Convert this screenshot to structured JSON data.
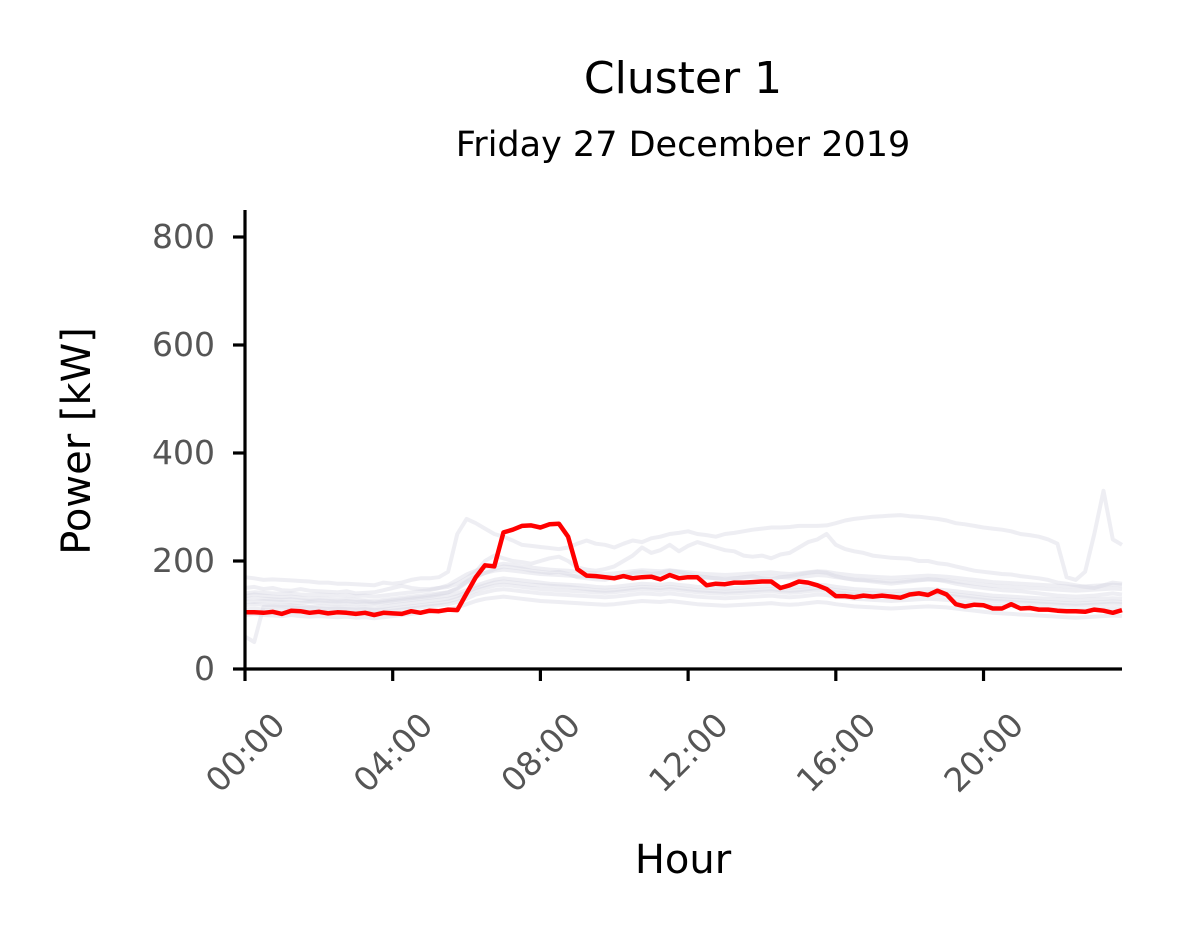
{
  "chart_data": {
    "type": "line",
    "title": "Cluster 1",
    "subtitle": "Friday 27 December 2019",
    "xlabel": "Hour",
    "ylabel": "Power [kW]",
    "ylim": [
      0,
      850
    ],
    "xlim": [
      "00:00",
      "23:45"
    ],
    "x_ticks": [
      "00:00",
      "04:00",
      "08:00",
      "12:00",
      "16:00",
      "20:00"
    ],
    "y_ticks": [
      0,
      200,
      400,
      600,
      800
    ],
    "grid": false,
    "legend": "none",
    "colors": {
      "highlight": "#ff0000",
      "background_days": "#d4d4e2",
      "axis": "#000000",
      "tick_label": "#555555"
    },
    "highlight_series": {
      "x": [
        "00:00",
        "00:15",
        "00:30",
        "00:45",
        "01:00",
        "01:15",
        "01:30",
        "01:45",
        "02:00",
        "02:15",
        "02:30",
        "02:45",
        "03:00",
        "03:15",
        "03:30",
        "03:45",
        "04:00",
        "04:15",
        "04:30",
        "04:45",
        "05:00",
        "05:15",
        "05:30",
        "05:45",
        "06:00",
        "06:15",
        "06:30",
        "06:45",
        "07:00",
        "07:15",
        "07:30",
        "07:45",
        "08:00",
        "08:15",
        "08:30",
        "08:45",
        "09:00",
        "09:15",
        "09:30",
        "09:45",
        "10:00",
        "10:15",
        "10:30",
        "10:45",
        "11:00",
        "11:15",
        "11:30",
        "11:45",
        "12:00",
        "12:15",
        "12:30",
        "12:45",
        "13:00",
        "13:15",
        "13:30",
        "13:45",
        "14:00",
        "14:15",
        "14:30",
        "14:45",
        "15:00",
        "15:15",
        "15:30",
        "15:45",
        "16:00",
        "16:15",
        "16:30",
        "16:45",
        "17:00",
        "17:15",
        "17:30",
        "17:45",
        "18:00",
        "18:15",
        "18:30",
        "18:45",
        "19:00",
        "19:15",
        "19:30",
        "19:45",
        "20:00",
        "20:15",
        "20:30",
        "20:45",
        "21:00",
        "21:15",
        "21:30",
        "21:45",
        "22:00",
        "22:15",
        "22:30",
        "22:45",
        "23:00",
        "23:15",
        "23:30",
        "23:45"
      ],
      "values": [
        105,
        105,
        104,
        106,
        102,
        108,
        107,
        104,
        106,
        103,
        105,
        104,
        102,
        104,
        100,
        104,
        103,
        102,
        107,
        104,
        108,
        107,
        110,
        109,
        140,
        170,
        192,
        190,
        253,
        258,
        265,
        266,
        262,
        268,
        269,
        245,
        185,
        173,
        172,
        170,
        168,
        172,
        168,
        170,
        171,
        166,
        174,
        168,
        170,
        170,
        155,
        158,
        157,
        160,
        160,
        161,
        162,
        162,
        150,
        155,
        162,
        160,
        155,
        148,
        135,
        135,
        133,
        136,
        134,
        136,
        134,
        132,
        138,
        140,
        137,
        145,
        138,
        120,
        116,
        119,
        118,
        112,
        112,
        120,
        112,
        113,
        110,
        110,
        108,
        107,
        107,
        106,
        110,
        108,
        104,
        109
      ]
    },
    "background_series": [
      {
        "values": [
          170,
          168,
          165,
          166,
          165,
          164,
          163,
          162,
          160,
          160,
          158,
          158,
          157,
          156,
          155,
          160,
          158,
          160,
          165,
          168,
          168,
          170,
          180,
          250,
          278,
          270,
          260,
          250,
          245,
          238,
          230,
          228,
          226,
          224,
          222,
          225,
          232,
          238,
          232,
          230,
          225,
          232,
          238,
          235,
          242,
          245,
          250,
          252,
          255,
          250,
          248,
          245,
          250,
          252,
          255,
          258,
          260,
          262,
          262,
          263,
          265,
          265,
          265,
          266,
          270,
          275,
          278,
          280,
          282,
          283,
          284,
          285,
          283,
          282,
          280,
          278,
          275,
          270,
          268,
          265,
          262,
          260,
          258,
          255,
          250,
          248,
          245,
          240,
          232,
          170,
          165,
          180,
          250,
          330,
          240,
          230
        ]
      },
      {
        "values": [
          150,
          152,
          148,
          150,
          146,
          145,
          148,
          145,
          144,
          143,
          142,
          144,
          140,
          141,
          142,
          146,
          150,
          154,
          150,
          148,
          148,
          150,
          152,
          158,
          168,
          180,
          200,
          210,
          205,
          200,
          198,
          195,
          200,
          205,
          208,
          200,
          188,
          184,
          182,
          185,
          190,
          200,
          210,
          225,
          215,
          220,
          230,
          218,
          228,
          235,
          230,
          225,
          220,
          218,
          210,
          208,
          210,
          205,
          212,
          215,
          225,
          235,
          240,
          250,
          230,
          222,
          218,
          215,
          210,
          208,
          206,
          205,
          204,
          200,
          200,
          196,
          194,
          190,
          186,
          182,
          180,
          178,
          176,
          175,
          172,
          170,
          168,
          165,
          160,
          158,
          155,
          152,
          150,
          155,
          160,
          158
        ]
      },
      {
        "values": [
          135,
          138,
          136,
          134,
          133,
          134,
          132,
          130,
          131,
          130,
          128,
          130,
          128,
          127,
          126,
          128,
          130,
          132,
          134,
          136,
          138,
          140,
          142,
          148,
          160,
          170,
          178,
          185,
          190,
          188,
          186,
          182,
          180,
          178,
          180,
          176,
          170,
          168,
          166,
          165,
          170,
          172,
          178,
          180,
          176,
          178,
          182,
          180,
          176,
          172,
          170,
          168,
          166,
          168,
          170,
          172,
          168,
          166,
          170,
          172,
          175,
          178,
          180,
          178,
          172,
          168,
          165,
          164,
          162,
          160,
          158,
          160,
          162,
          164,
          166,
          165,
          162,
          158,
          155,
          152,
          150,
          148,
          146,
          145,
          144,
          142,
          140,
          138,
          136,
          135,
          134,
          135,
          136,
          138,
          140,
          138
        ]
      },
      {
        "values": [
          118,
          120,
          119,
          118,
          117,
          118,
          116,
          115,
          116,
          115,
          114,
          115,
          113,
          114,
          112,
          115,
          118,
          120,
          122,
          124,
          126,
          128,
          130,
          135,
          142,
          150,
          155,
          160,
          162,
          160,
          158,
          156,
          155,
          154,
          153,
          152,
          150,
          148,
          146,
          145,
          146,
          148,
          150,
          152,
          151,
          150,
          152,
          150,
          148,
          146,
          145,
          144,
          143,
          144,
          145,
          146,
          147,
          148,
          146,
          145,
          146,
          148,
          150,
          149,
          146,
          144,
          142,
          141,
          140,
          139,
          138,
          139,
          140,
          141,
          142,
          141,
          140,
          138,
          136,
          134,
          132,
          130,
          129,
          128,
          127,
          126,
          125,
          124,
          123,
          122,
          121,
          122,
          123,
          124,
          125,
          124
        ]
      },
      {
        "values": [
          125,
          124,
          126,
          125,
          124,
          123,
          122,
          124,
          123,
          122,
          121,
          122,
          120,
          121,
          120,
          122,
          124,
          126,
          128,
          130,
          132,
          134,
          136,
          140,
          146,
          154,
          160,
          165,
          168,
          166,
          164,
          162,
          160,
          158,
          157,
          156,
          155,
          154,
          152,
          151,
          152,
          154,
          156,
          158,
          157,
          156,
          158,
          156,
          154,
          152,
          151,
          150,
          149,
          150,
          151,
          152,
          153,
          154,
          152,
          151,
          152,
          154,
          156,
          155,
          152,
          150,
          148,
          147,
          146,
          145,
          144,
          145,
          146,
          147,
          148,
          147,
          146,
          144,
          142,
          140,
          138,
          136,
          135,
          134,
          133,
          132,
          131,
          130,
          129,
          128,
          127,
          128,
          129,
          130,
          131,
          130
        ]
      },
      {
        "values": [
          110,
          112,
          110,
          109,
          108,
          110,
          108,
          107,
          108,
          107,
          106,
          107,
          105,
          106,
          104,
          106,
          108,
          110,
          112,
          114,
          116,
          118,
          120,
          124,
          130,
          138,
          142,
          146,
          148,
          146,
          144,
          142,
          140,
          139,
          138,
          137,
          136,
          135,
          134,
          133,
          134,
          136,
          138,
          140,
          139,
          138,
          140,
          138,
          136,
          134,
          133,
          132,
          131,
          132,
          133,
          134,
          135,
          136,
          134,
          133,
          134,
          136,
          138,
          137,
          134,
          132,
          130,
          129,
          128,
          127,
          126,
          127,
          128,
          129,
          130,
          129,
          128,
          126,
          124,
          122,
          120,
          118,
          117,
          116,
          115,
          114,
          113,
          112,
          111,
          110,
          109,
          110,
          111,
          112,
          113,
          112
        ]
      },
      {
        "values": [
          140,
          142,
          141,
          140,
          139,
          140,
          138,
          137,
          138,
          137,
          136,
          137,
          135,
          136,
          134,
          136,
          138,
          140,
          142,
          144,
          146,
          150,
          155,
          165,
          175,
          182,
          188,
          192,
          195,
          193,
          190,
          188,
          186,
          184,
          183,
          182,
          180,
          178,
          177,
          176,
          177,
          179,
          181,
          183,
          182,
          181,
          183,
          181,
          179,
          177,
          176,
          175,
          174,
          175,
          176,
          177,
          178,
          179,
          177,
          176,
          177,
          179,
          181,
          180,
          177,
          175,
          173,
          172,
          171,
          170,
          169,
          170,
          171,
          172,
          173,
          172,
          171,
          169,
          167,
          165,
          163,
          161,
          160,
          159,
          158,
          157,
          156,
          155,
          154,
          153,
          152,
          153,
          154,
          155,
          156,
          155
        ]
      },
      {
        "values": [
          100,
          102,
          100,
          99,
          98,
          100,
          98,
          97,
          98,
          97,
          96,
          97,
          95,
          96,
          94,
          96,
          98,
          100,
          102,
          104,
          106,
          108,
          110,
          114,
          120,
          126,
          130,
          132,
          134,
          132,
          130,
          128,
          126,
          125,
          124,
          123,
          122,
          121,
          120,
          119,
          120,
          122,
          124,
          126,
          125,
          124,
          126,
          124,
          122,
          120,
          119,
          118,
          117,
          118,
          119,
          120,
          121,
          122,
          120,
          119,
          120,
          122,
          124,
          123,
          120,
          118,
          116,
          115,
          114,
          113,
          112,
          113,
          114,
          115,
          116,
          115,
          114,
          112,
          110,
          108,
          106,
          104,
          103,
          102,
          101,
          100,
          99,
          98,
          97,
          96,
          95,
          96,
          97,
          98,
          99,
          98
        ]
      },
      {
        "values": [
          130,
          131,
          130,
          129,
          128,
          129,
          127,
          126,
          127,
          126,
          125,
          126,
          124,
          125,
          123,
          125,
          127,
          129,
          131,
          133,
          135,
          138,
          142,
          150,
          162,
          172,
          178,
          182,
          184,
          182,
          180,
          178,
          176,
          175,
          174,
          173,
          172,
          171,
          170,
          169,
          170,
          172,
          174,
          176,
          175,
          174,
          176,
          174,
          172,
          170,
          169,
          168,
          167,
          168,
          169,
          170,
          171,
          172,
          170,
          169,
          170,
          172,
          174,
          173,
          170,
          168,
          166,
          165,
          164,
          163,
          162,
          163,
          164,
          165,
          166,
          165,
          164,
          162,
          160,
          158,
          156,
          154,
          153,
          152,
          151,
          150,
          149,
          148,
          147,
          146,
          145,
          146,
          147,
          148,
          149,
          148
        ]
      },
      {
        "values": [
          60,
          50,
          115,
          116,
          115,
          114,
          113,
          114,
          112,
          111,
          112,
          111,
          110,
          111,
          109,
          110,
          112,
          114,
          116,
          118,
          120,
          122,
          125,
          130,
          138,
          145,
          150,
          154,
          156,
          154,
          152,
          150,
          148,
          147,
          146,
          145,
          144,
          143,
          142,
          141,
          142,
          144,
          146,
          148,
          147,
          146,
          148,
          146,
          144,
          142,
          141,
          140,
          139,
          140,
          141,
          142,
          143,
          144,
          142,
          141,
          142,
          144,
          146,
          145,
          142,
          140,
          138,
          137,
          136,
          135,
          134,
          135,
          136,
          137,
          138,
          137,
          136,
          134,
          132,
          130,
          128,
          126,
          125,
          124,
          123,
          122,
          121,
          120,
          119,
          118,
          117,
          118,
          119,
          120,
          121,
          120
        ]
      }
    ]
  }
}
